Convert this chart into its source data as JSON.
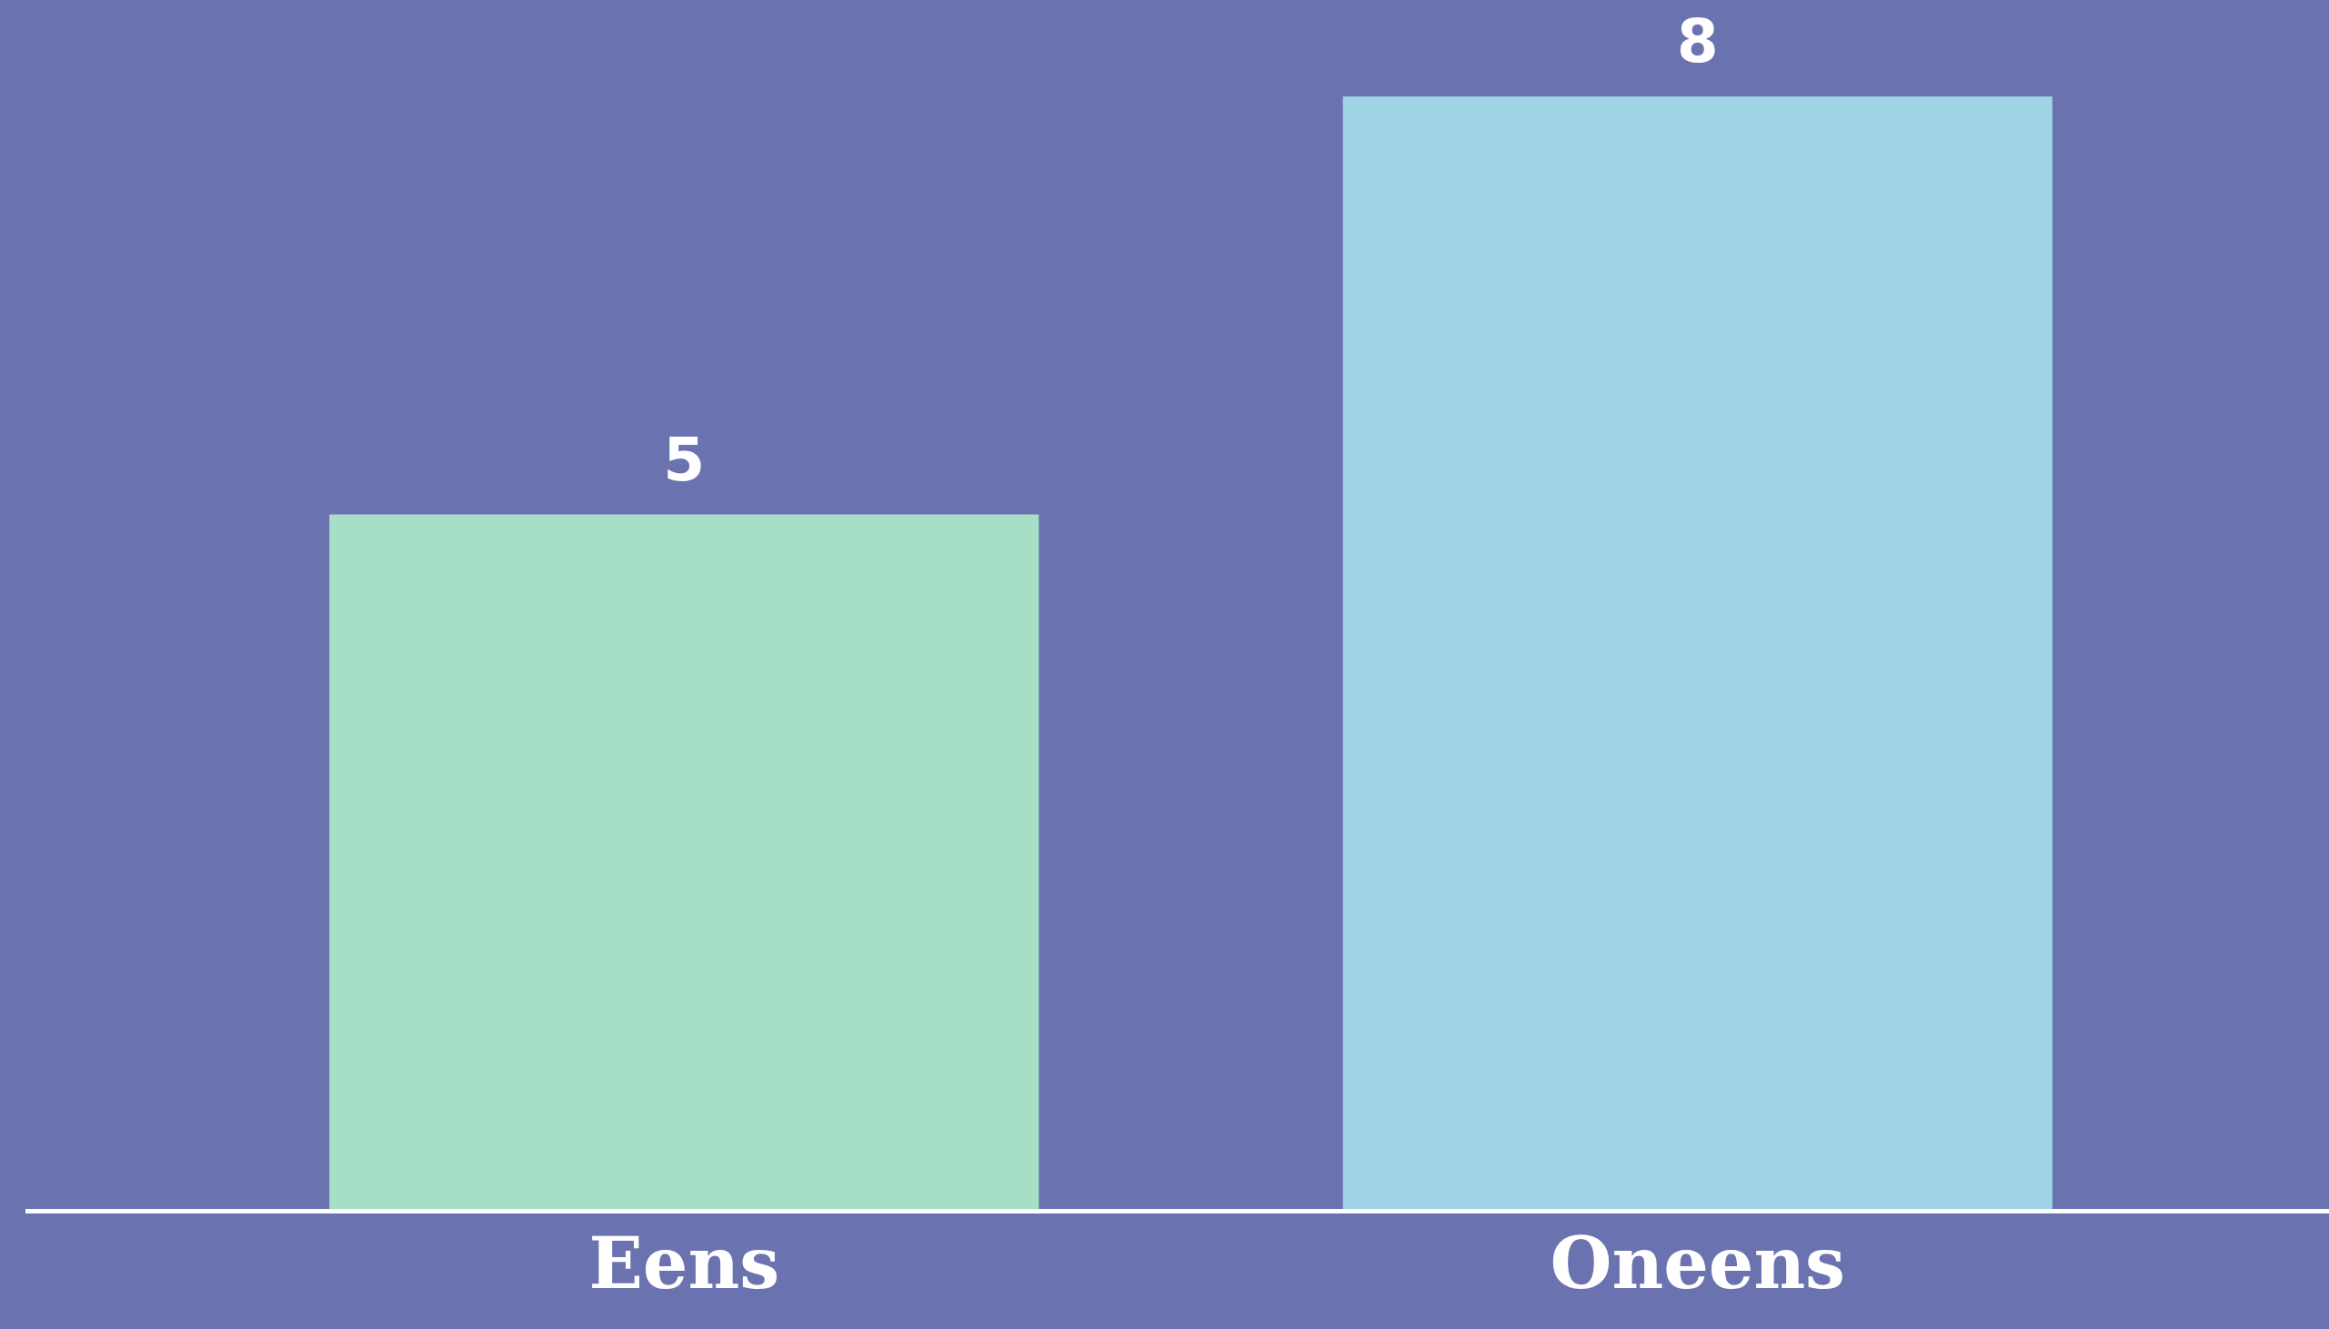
{
  "chart_data": {
    "type": "bar",
    "categories": [
      "Eens",
      "Oneens"
    ],
    "values": [
      5,
      8
    ],
    "colors": [
      "#a6dec6",
      "#a0d5e6"
    ],
    "ylim": [
      0,
      8
    ],
    "tick_labels": "x",
    "data_labels": true
  }
}
